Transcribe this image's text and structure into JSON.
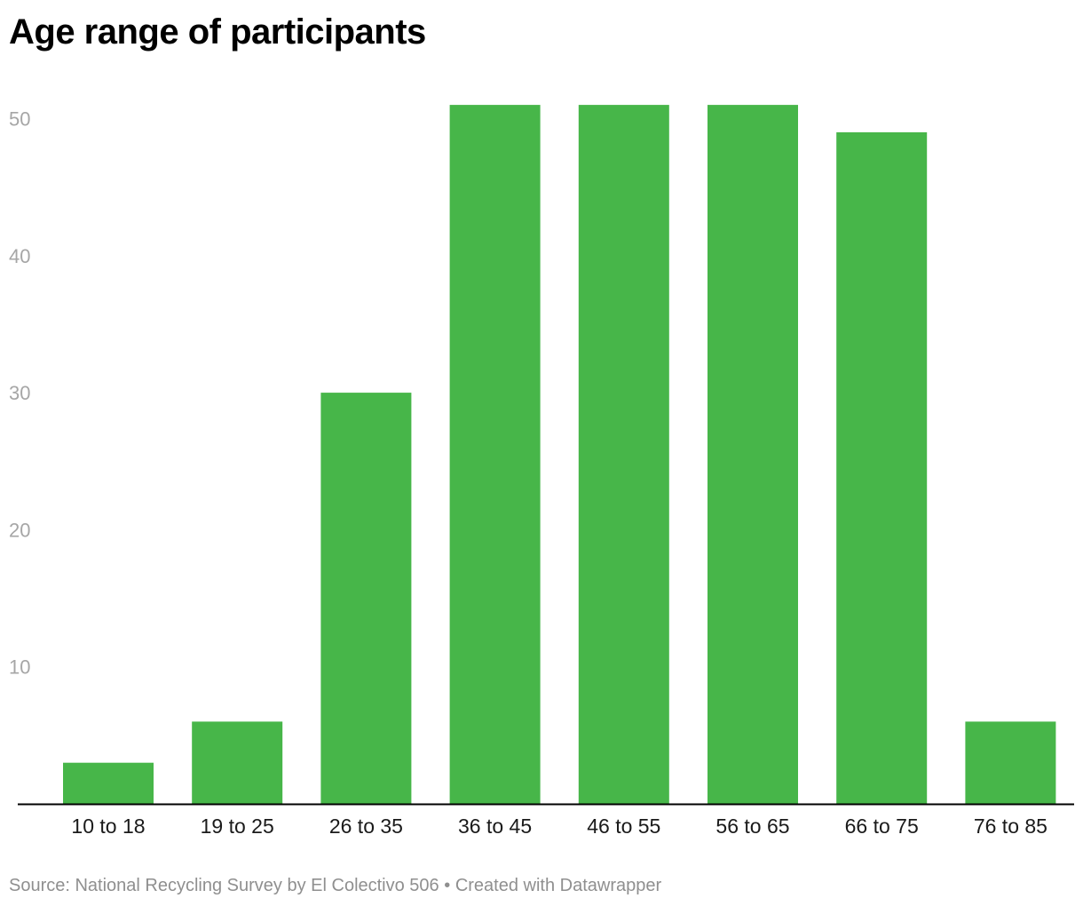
{
  "title": "Age range of participants",
  "footer": {
    "source": "Source: National Recycling Survey by El Colectivo 506",
    "separator": "•",
    "credit": "Created with Datawrapper"
  },
  "colors": {
    "bar": "#47b649",
    "axis": "#000000",
    "tick_text": "#a6a6a6",
    "category_text": "#1a1a1a"
  },
  "chart_data": {
    "type": "bar",
    "title": "Age range of participants",
    "xlabel": "",
    "ylabel": "",
    "categories": [
      "10 to 18",
      "19 to 25",
      "26 to 35",
      "36 to 45",
      "46 to 55",
      "56 to 65",
      "66 to 75",
      "76 to 85"
    ],
    "values": [
      3,
      6,
      30,
      51,
      51,
      51,
      49,
      6
    ],
    "ylim": [
      0,
      55
    ],
    "yticks": [
      10,
      20,
      30,
      40,
      50
    ],
    "grid": false,
    "legend": "none"
  }
}
